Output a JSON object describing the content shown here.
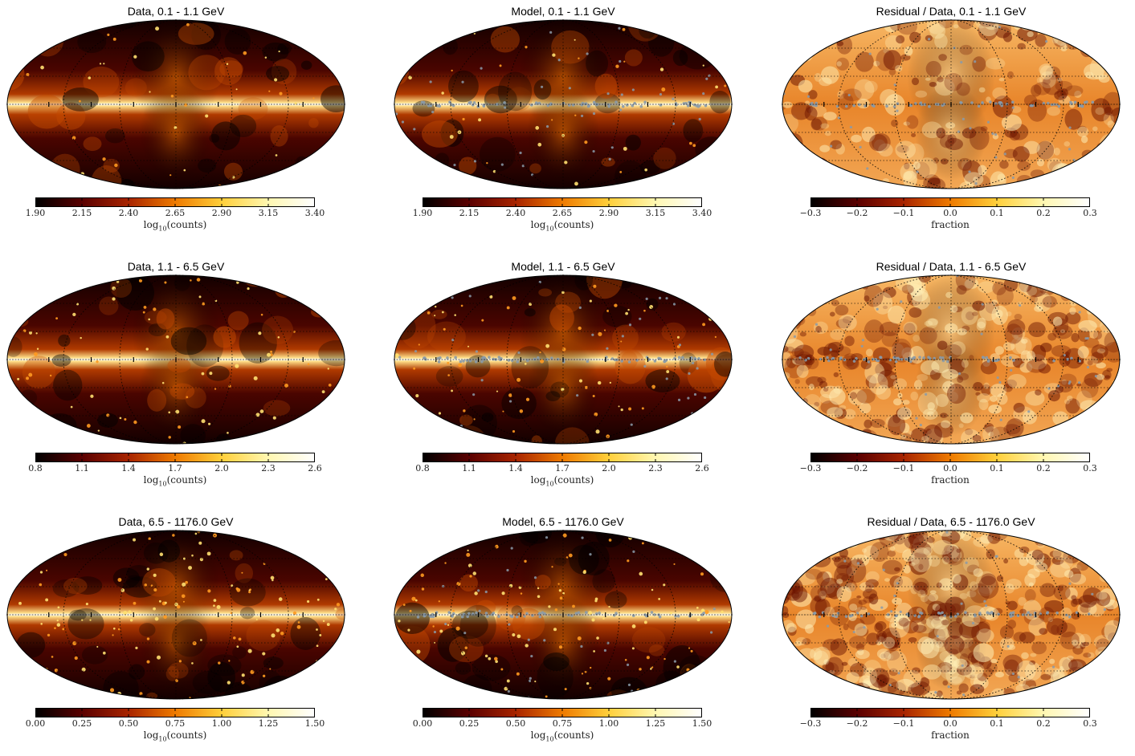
{
  "figure": {
    "rows": [
      {
        "data": {
          "title": "Data, 0.1 - 1.1 GeV",
          "colorbar": {
            "ticks": [
              "1.90",
              "2.15",
              "2.40",
              "2.65",
              "2.90",
              "3.15",
              "3.40"
            ],
            "label_main": "log",
            "label_sub": "10",
            "label_rest": "(counts)"
          }
        },
        "model": {
          "title": "Model, 0.1 - 1.1 GeV",
          "colorbar": {
            "ticks": [
              "1.90",
              "2.15",
              "2.40",
              "2.65",
              "2.90",
              "3.15",
              "3.40"
            ],
            "label_main": "log",
            "label_sub": "10",
            "label_rest": "(counts)"
          }
        },
        "residual": {
          "title": "Residual / Data, 0.1 - 1.1 GeV",
          "colorbar": {
            "ticks": [
              "−0.3",
              "−0.2",
              "−0.1",
              "0.0",
              "0.1",
              "0.2",
              "0.3"
            ],
            "label_main": "fraction",
            "label_sub": "",
            "label_rest": ""
          }
        }
      },
      {
        "data": {
          "title": "Data, 1.1 - 6.5 GeV",
          "colorbar": {
            "ticks": [
              "0.8",
              "1.1",
              "1.4",
              "1.7",
              "2.0",
              "2.3",
              "2.6"
            ],
            "label_main": "log",
            "label_sub": "10",
            "label_rest": "(counts)"
          }
        },
        "model": {
          "title": "Model, 1.1 - 6.5 GeV",
          "colorbar": {
            "ticks": [
              "0.8",
              "1.1",
              "1.4",
              "1.7",
              "2.0",
              "2.3",
              "2.6"
            ],
            "label_main": "log",
            "label_sub": "10",
            "label_rest": "(counts)"
          }
        },
        "residual": {
          "title": "Residual / Data, 1.1 - 6.5 GeV",
          "colorbar": {
            "ticks": [
              "−0.3",
              "−0.2",
              "−0.1",
              "0.0",
              "0.1",
              "0.2",
              "0.3"
            ],
            "label_main": "fraction",
            "label_sub": "",
            "label_rest": ""
          }
        }
      },
      {
        "data": {
          "title": "Data, 6.5 - 1176.0 GeV",
          "colorbar": {
            "ticks": [
              "0.00",
              "0.25",
              "0.50",
              "0.75",
              "1.00",
              "1.25",
              "1.50"
            ],
            "label_main": "log",
            "label_sub": "10",
            "label_rest": "(counts)"
          }
        },
        "model": {
          "title": "Model, 6.5 - 1176.0 GeV",
          "colorbar": {
            "ticks": [
              "0.00",
              "0.25",
              "0.50",
              "0.75",
              "1.00",
              "1.25",
              "1.50"
            ],
            "label_main": "log",
            "label_sub": "10",
            "label_rest": "(counts)"
          }
        },
        "residual": {
          "title": "Residual / Data, 6.5 - 1176.0 GeV",
          "colorbar": {
            "ticks": [
              "−0.3",
              "−0.2",
              "−0.1",
              "0.0",
              "0.1",
              "0.2",
              "0.3"
            ],
            "label_main": "fraction",
            "label_sub": "",
            "label_rest": ""
          }
        }
      }
    ],
    "colormap": [
      "#000000",
      "#5a0000",
      "#a82400",
      "#ee7a00",
      "#ffcf3a",
      "#fff7b0",
      "#ffffff"
    ],
    "source_marker_color": "#8a9aa8"
  }
}
